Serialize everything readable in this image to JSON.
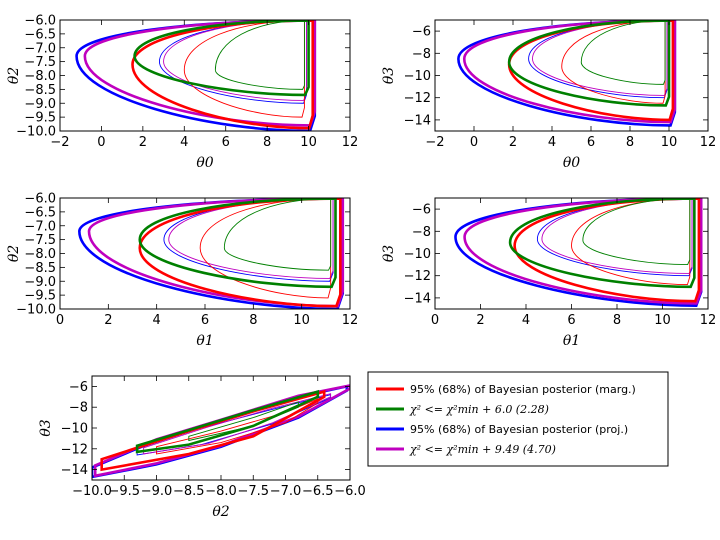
{
  "chart_data": [
    {
      "type": "contour",
      "panel": "theta2_vs_theta0",
      "xlabel": "θ0",
      "ylabel": "θ2",
      "xlim": [
        -2,
        12
      ],
      "ylim": [
        -10.0,
        -6.0
      ],
      "xticks": [
        "−2",
        "0",
        "2",
        "4",
        "6",
        "8",
        "10",
        "12"
      ],
      "yticks": [
        "−10.0",
        "−9.5",
        "−9.0",
        "−8.5",
        "−8.0",
        "−7.5",
        "−7.0",
        "−6.5",
        "−6.0"
      ],
      "contours": [
        {
          "series": "marg",
          "level": "95%",
          "x_min": 1.5,
          "x_max": 10.2,
          "y_tip": -7.6,
          "y_low": -9.9
        },
        {
          "series": "marg",
          "level": "68%",
          "x_min": 4.0,
          "x_max": 9.8,
          "y_tip": -7.8,
          "y_low": -9.5
        },
        {
          "series": "chi2_6",
          "level": "95%",
          "x_min": 1.6,
          "x_max": 10.0,
          "y_tip": -7.3,
          "y_low": -8.7
        },
        {
          "series": "chi2_6",
          "level": "68%",
          "x_min": 5.5,
          "x_max": 9.8,
          "y_tip": -7.8,
          "y_low": -8.5
        },
        {
          "series": "proj",
          "level": "95%",
          "x_min": -1.2,
          "x_max": 10.3,
          "y_tip": -7.3,
          "y_low": -10.0
        },
        {
          "series": "proj",
          "level": "68%",
          "x_min": 2.8,
          "x_max": 9.9,
          "y_tip": -7.5,
          "y_low": -9.0
        },
        {
          "series": "chi2_9",
          "level": "95%",
          "x_min": -0.8,
          "x_max": 10.3,
          "y_tip": -7.3,
          "y_low": -9.8
        },
        {
          "series": "chi2_9",
          "level": "68%",
          "x_min": 3.0,
          "x_max": 9.9,
          "y_tip": -7.5,
          "y_low": -8.9
        }
      ]
    },
    {
      "type": "contour",
      "panel": "theta3_vs_theta0",
      "xlabel": "θ0",
      "ylabel": "θ3",
      "xlim": [
        -2,
        12
      ],
      "ylim": [
        -15,
        -5
      ],
      "xticks": [
        "−2",
        "0",
        "2",
        "4",
        "6",
        "8",
        "10",
        "12"
      ],
      "yticks": [
        "−14",
        "−12",
        "−10",
        "−8",
        "−6"
      ],
      "contours": [
        {
          "series": "marg",
          "level": "95%",
          "x_min": 1.8,
          "x_max": 10.2,
          "y_tip": -9.0,
          "y_low": -14.0
        },
        {
          "series": "marg",
          "level": "68%",
          "x_min": 4.5,
          "x_max": 9.8,
          "y_tip": -9.2,
          "y_low": -12.5
        },
        {
          "series": "chi2_6",
          "level": "95%",
          "x_min": 1.8,
          "x_max": 10.0,
          "y_tip": -8.8,
          "y_low": -12.7
        },
        {
          "series": "chi2_6",
          "level": "68%",
          "x_min": 5.5,
          "x_max": 9.8,
          "y_tip": -8.8,
          "y_low": -10.8
        },
        {
          "series": "proj",
          "level": "95%",
          "x_min": -0.8,
          "x_max": 10.3,
          "y_tip": -8.5,
          "y_low": -14.5
        },
        {
          "series": "proj",
          "level": "68%",
          "x_min": 2.8,
          "x_max": 9.9,
          "y_tip": -8.5,
          "y_low": -12.0
        },
        {
          "series": "chi2_9",
          "level": "95%",
          "x_min": -0.5,
          "x_max": 10.3,
          "y_tip": -8.5,
          "y_low": -14.2
        },
        {
          "series": "chi2_9",
          "level": "68%",
          "x_min": 3.0,
          "x_max": 9.9,
          "y_tip": -8.5,
          "y_low": -11.8
        }
      ]
    },
    {
      "type": "contour",
      "panel": "theta2_vs_theta1",
      "xlabel": "θ1",
      "ylabel": "θ2",
      "xlim": [
        0,
        12
      ],
      "ylim": [
        -10.0,
        -6.0
      ],
      "xticks": [
        "0",
        "2",
        "4",
        "6",
        "8",
        "10",
        "12"
      ],
      "yticks": [
        "−10.0",
        "−9.5",
        "−9.0",
        "−8.5",
        "−8.0",
        "−7.5",
        "−7.0",
        "−6.5",
        "−6.0"
      ],
      "contours": [
        {
          "series": "marg",
          "level": "95%",
          "x_min": 3.3,
          "x_max": 11.6,
          "y_tip": -7.8,
          "y_low": -9.9
        },
        {
          "series": "marg",
          "level": "68%",
          "x_min": 5.8,
          "x_max": 11.2,
          "y_tip": -7.8,
          "y_low": -9.6
        },
        {
          "series": "chi2_6",
          "level": "95%",
          "x_min": 3.3,
          "x_max": 11.4,
          "y_tip": -7.5,
          "y_low": -9.2
        },
        {
          "series": "chi2_6",
          "level": "68%",
          "x_min": 6.8,
          "x_max": 11.2,
          "y_tip": -7.8,
          "y_low": -8.6
        },
        {
          "series": "proj",
          "level": "95%",
          "x_min": 0.8,
          "x_max": 11.7,
          "y_tip": -7.2,
          "y_low": -10.0
        },
        {
          "series": "proj",
          "level": "68%",
          "x_min": 4.3,
          "x_max": 11.3,
          "y_tip": -7.5,
          "y_low": -9.0
        },
        {
          "series": "chi2_9",
          "level": "95%",
          "x_min": 1.2,
          "x_max": 11.7,
          "y_tip": -7.2,
          "y_low": -9.9
        },
        {
          "series": "chi2_9",
          "level": "68%",
          "x_min": 4.5,
          "x_max": 11.3,
          "y_tip": -7.5,
          "y_low": -8.9
        }
      ]
    },
    {
      "type": "contour",
      "panel": "theta3_vs_theta1",
      "xlabel": "θ1",
      "ylabel": "θ3",
      "xlim": [
        0,
        12
      ],
      "ylim": [
        -15,
        -5
      ],
      "xticks": [
        "0",
        "2",
        "4",
        "6",
        "8",
        "10",
        "12"
      ],
      "yticks": [
        "−14",
        "−12",
        "−10",
        "−8",
        "−6"
      ],
      "contours": [
        {
          "series": "marg",
          "level": "95%",
          "x_min": 3.5,
          "x_max": 11.6,
          "y_tip": -9.3,
          "y_low": -14.3
        },
        {
          "series": "marg",
          "level": "68%",
          "x_min": 6.0,
          "x_max": 11.2,
          "y_tip": -9.3,
          "y_low": -12.8
        },
        {
          "series": "chi2_6",
          "level": "95%",
          "x_min": 3.3,
          "x_max": 11.4,
          "y_tip": -9.0,
          "y_low": -13.0
        },
        {
          "series": "chi2_6",
          "level": "68%",
          "x_min": 6.5,
          "x_max": 11.2,
          "y_tip": -8.8,
          "y_low": -11.0
        },
        {
          "series": "proj",
          "level": "95%",
          "x_min": 0.9,
          "x_max": 11.7,
          "y_tip": -8.5,
          "y_low": -14.7
        },
        {
          "series": "proj",
          "level": "68%",
          "x_min": 4.5,
          "x_max": 11.3,
          "y_tip": -8.7,
          "y_low": -12.0
        },
        {
          "series": "chi2_9",
          "level": "95%",
          "x_min": 1.3,
          "x_max": 11.7,
          "y_tip": -8.5,
          "y_low": -14.5
        },
        {
          "series": "chi2_9",
          "level": "68%",
          "x_min": 4.7,
          "x_max": 11.3,
          "y_tip": -8.7,
          "y_low": -11.8
        }
      ]
    },
    {
      "type": "contour",
      "panel": "theta3_vs_theta2",
      "xlabel": "θ2",
      "ylabel": "θ3",
      "xlim": [
        -10.0,
        -6.0
      ],
      "ylim": [
        -15,
        -5
      ],
      "xticks": [
        "−10.0",
        "−9.5",
        "−9.0",
        "−8.5",
        "−8.0",
        "−7.5",
        "−7.0",
        "−6.5",
        "−6.0"
      ],
      "yticks": [
        "−14",
        "−12",
        "−10",
        "−8",
        "−6"
      ],
      "band_contours": [
        {
          "series": "marg",
          "level": "95%",
          "upper": [
            [
              -9.85,
              -13.0
            ],
            [
              -8.5,
              -10.3
            ],
            [
              -7.5,
              -8.4
            ],
            [
              -6.4,
              -6.5
            ]
          ],
          "lower": [
            [
              -9.85,
              -14.0
            ],
            [
              -8.5,
              -12.5
            ],
            [
              -7.5,
              -10.8
            ],
            [
              -6.4,
              -7.0
            ]
          ]
        },
        {
          "series": "marg",
          "level": "68%",
          "upper": [
            [
              -9.0,
              -11.8
            ],
            [
              -8.0,
              -10.3
            ],
            [
              -7.0,
              -8.5
            ],
            [
              -6.5,
              -7.2
            ]
          ],
          "lower": [
            [
              -9.0,
              -12.5
            ],
            [
              -8.0,
              -11.4
            ],
            [
              -7.0,
              -9.5
            ],
            [
              -6.5,
              -7.6
            ]
          ]
        },
        {
          "series": "chi2_6",
          "level": "95%",
          "upper": [
            [
              -9.3,
              -11.7
            ],
            [
              -8.5,
              -10.2
            ],
            [
              -7.5,
              -8.3
            ],
            [
              -6.5,
              -6.5
            ]
          ],
          "lower": [
            [
              -9.3,
              -12.3
            ],
            [
              -8.5,
              -11.6
            ],
            [
              -7.5,
              -9.8
            ],
            [
              -6.5,
              -7.0
            ]
          ]
        },
        {
          "series": "chi2_6",
          "level": "68%",
          "upper": [
            [
              -8.5,
              -10.8
            ],
            [
              -7.5,
              -9.0
            ],
            [
              -6.8,
              -7.5
            ]
          ],
          "lower": [
            [
              -8.5,
              -11.2
            ],
            [
              -7.5,
              -9.8
            ],
            [
              -6.8,
              -8.0
            ]
          ]
        },
        {
          "series": "proj",
          "level": "95%",
          "upper": [
            [
              -10.0,
              -13.8
            ],
            [
              -9.0,
              -11.2
            ],
            [
              -8.0,
              -9.3
            ],
            [
              -6.8,
              -7.0
            ],
            [
              -6.05,
              -6.0
            ]
          ],
          "lower": [
            [
              -10.0,
              -14.7
            ],
            [
              -9.0,
              -13.5
            ],
            [
              -8.0,
              -11.8
            ],
            [
              -6.8,
              -9.0
            ],
            [
              -6.05,
              -6.4
            ]
          ]
        },
        {
          "series": "proj",
          "level": "68%",
          "upper": [
            [
              -9.3,
              -12.0
            ],
            [
              -8.3,
              -10.0
            ],
            [
              -7.2,
              -8.2
            ],
            [
              -6.3,
              -6.8
            ]
          ],
          "lower": [
            [
              -9.3,
              -12.6
            ],
            [
              -8.3,
              -11.6
            ],
            [
              -7.2,
              -9.6
            ],
            [
              -6.3,
              -7.1
            ]
          ]
        },
        {
          "series": "chi2_9",
          "level": "95%",
          "upper": [
            [
              -9.95,
              -13.6
            ],
            [
              -9.0,
              -11.1
            ],
            [
              -8.0,
              -9.2
            ],
            [
              -6.8,
              -6.9
            ],
            [
              -6.0,
              -5.9
            ]
          ],
          "lower": [
            [
              -9.95,
              -14.6
            ],
            [
              -9.0,
              -13.4
            ],
            [
              -8.0,
              -11.7
            ],
            [
              -6.8,
              -8.9
            ],
            [
              -6.0,
              -6.2
            ]
          ]
        },
        {
          "series": "chi2_9",
          "level": "68%",
          "upper": [
            [
              -9.2,
              -11.9
            ],
            [
              -8.2,
              -9.9
            ],
            [
              -7.2,
              -8.1
            ],
            [
              -6.3,
              -6.7
            ]
          ],
          "lower": [
            [
              -9.2,
              -12.5
            ],
            [
              -8.2,
              -11.5
            ],
            [
              -7.2,
              -9.5
            ],
            [
              -6.3,
              -7.0
            ]
          ]
        }
      ]
    }
  ],
  "series": {
    "marg": {
      "color": "#ff0000"
    },
    "chi2_6": {
      "color": "#008000"
    },
    "proj": {
      "color": "#0000ff"
    },
    "chi2_9": {
      "color": "#bf00bf"
    }
  },
  "legend": {
    "placement": "bottom-right",
    "entries": [
      {
        "series": "marg",
        "label": "95% (68%) of Bayesian posterior (marg.)"
      },
      {
        "series": "chi2_6",
        "label": "χ² <= χ²min + 6.0 (2.28)"
      },
      {
        "series": "proj",
        "label": "95% (68%) of Bayesian posterior (proj.)"
      },
      {
        "series": "chi2_9",
        "label": "χ² <= χ²min + 9.49 (4.70)"
      }
    ]
  }
}
